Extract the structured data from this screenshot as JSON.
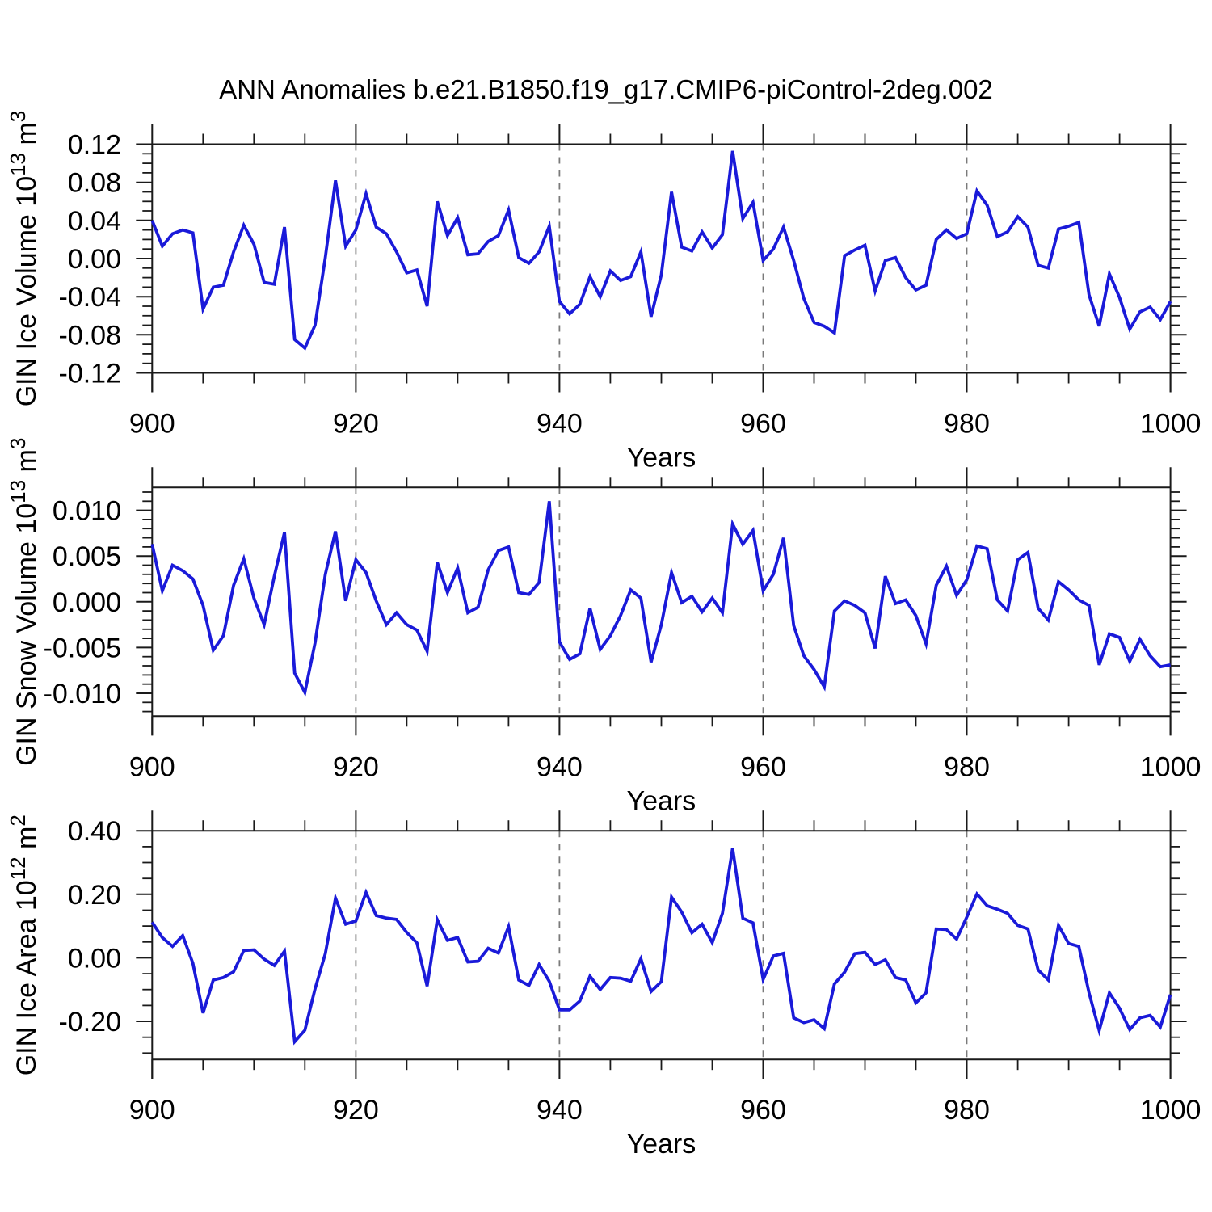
{
  "title": "ANN Anomalies b.e21.B1850.f19_g17.CMIP6-piControl-2deg.002",
  "colors": {
    "line": "#1a1ad9",
    "axis": "#1a1a1a",
    "dashed_gridline": "#7a7a7a",
    "background": "#ffffff",
    "text": "#000000"
  },
  "x_axis": {
    "label": "Years",
    "start": 900,
    "end": 1000,
    "major_ticks": [
      900,
      920,
      940,
      960,
      980,
      1000
    ],
    "major_tick_labels": [
      "900",
      "920",
      "940",
      "960",
      "980",
      "1000"
    ],
    "minor_step": 5,
    "dashed_gridlines": [
      920,
      940,
      960,
      980
    ]
  },
  "chart_data": [
    {
      "type": "line",
      "name": "ice-volume",
      "ylabel": "GIN Ice Volume 10^13 m^3",
      "ylabel_parts": {
        "main": "GIN Ice Volume 10",
        "exp": "13",
        "unit": " m",
        "unit_exp": "3"
      },
      "xlabel": "Years",
      "xlim": [
        900,
        1000
      ],
      "x_start": 900,
      "x_step": 1,
      "ylim_box": [
        -0.12,
        0.12
      ],
      "y_top": 0.12,
      "y_bottom": -0.12,
      "y_tick_values": [
        0.12,
        0.08,
        0.04,
        0.0,
        -0.04,
        -0.08,
        -0.12
      ],
      "y_tick_labels": [
        "0.12",
        "0.08",
        "0.04",
        "0.00",
        "-0.04",
        "-0.08",
        "-0.12"
      ],
      "y_minor_step": 0.01,
      "values": [
        0.04,
        0.013,
        0.026,
        0.03,
        0.027,
        -0.053,
        -0.03,
        -0.028,
        0.007,
        0.035,
        0.015,
        -0.025,
        -0.027,
        0.033,
        -0.085,
        -0.094,
        -0.07,
        0.001,
        0.082,
        0.013,
        0.03,
        0.068,
        0.033,
        0.026,
        0.007,
        -0.015,
        -0.012,
        -0.05,
        0.06,
        0.024,
        0.043,
        0.004,
        0.005,
        0.018,
        0.024,
        0.051,
        0.001,
        -0.005,
        0.007,
        0.034,
        -0.045,
        -0.058,
        -0.048,
        -0.019,
        -0.04,
        -0.013,
        -0.023,
        -0.019,
        0.007,
        -0.061,
        -0.017,
        0.07,
        0.012,
        0.008,
        0.028,
        0.011,
        0.025,
        0.113,
        0.042,
        0.059,
        -0.002,
        0.01,
        0.033,
        -0.002,
        -0.042,
        -0.067,
        -0.071,
        -0.078,
        0.003,
        0.009,
        0.014,
        -0.034,
        -0.002,
        0.001,
        -0.02,
        -0.033,
        -0.028,
        0.02,
        0.03,
        0.021,
        0.026,
        0.071,
        0.056,
        0.023,
        0.028,
        0.044,
        0.033,
        -0.007,
        -0.01,
        0.031,
        0.034,
        0.038,
        -0.038,
        -0.071,
        -0.016,
        -0.041,
        -0.074,
        -0.056,
        -0.051,
        -0.064,
        -0.045
      ]
    },
    {
      "type": "line",
      "name": "snow-volume",
      "ylabel": "GIN Snow Volume 10^13 m^3",
      "ylabel_parts": {
        "main": "GIN Snow Volume 10",
        "exp": "13",
        "unit": " m",
        "unit_exp": "3"
      },
      "xlabel": "Years",
      "xlim": [
        900,
        1000
      ],
      "x_start": 900,
      "x_step": 1,
      "ylim_box": [
        -0.0125,
        0.0125
      ],
      "y_top": 0.0125,
      "y_bottom": -0.0125,
      "y_tick_values": [
        0.01,
        0.005,
        0.0,
        -0.005,
        -0.01
      ],
      "y_tick_labels": [
        "0.010",
        "0.005",
        "0.000",
        "-0.005",
        "-0.010"
      ],
      "y_minor_step": 0.001,
      "values": [
        0.0063,
        0.0012,
        0.004,
        0.0034,
        0.0025,
        -0.0004,
        -0.0053,
        -0.0037,
        0.0018,
        0.0047,
        0.0004,
        -0.0025,
        0.0028,
        0.0076,
        -0.0078,
        -0.0099,
        -0.0045,
        0.003,
        0.0077,
        0.0001,
        0.0046,
        0.0032,
        0.0001,
        -0.0025,
        -0.0012,
        -0.0025,
        -0.0031,
        -0.0054,
        0.0043,
        0.001,
        0.0037,
        -0.0012,
        -0.0006,
        0.0035,
        0.0056,
        0.006,
        0.001,
        0.0008,
        0.0021,
        0.011,
        -0.0044,
        -0.0063,
        -0.0057,
        -0.0007,
        -0.0052,
        -0.0037,
        -0.0015,
        0.0013,
        0.0004,
        -0.0066,
        -0.0025,
        0.0032,
        -0.0001,
        0.0006,
        -0.0011,
        0.0004,
        -0.0012,
        0.0085,
        0.0063,
        0.0078,
        0.0012,
        0.003,
        0.007,
        -0.0026,
        -0.0059,
        -0.0074,
        -0.0093,
        -0.001,
        0.0001,
        -0.0004,
        -0.0012,
        -0.0051,
        0.0028,
        -0.0002,
        0.0002,
        -0.0015,
        -0.0046,
        0.0018,
        0.0039,
        0.0007,
        0.0024,
        0.0061,
        0.0058,
        0.0002,
        -0.001,
        0.0046,
        0.0054,
        -0.0007,
        -0.002,
        0.0022,
        0.0013,
        0.0002,
        -0.0004,
        -0.0069,
        -0.0035,
        -0.0039,
        -0.0065,
        -0.0041,
        -0.0059,
        -0.0071,
        -0.0069
      ]
    },
    {
      "type": "line",
      "name": "ice-area",
      "ylabel": "GIN Ice Area 10^12 m^2",
      "ylabel_parts": {
        "main": "GIN Ice Area 10",
        "exp": "12",
        "unit": " m",
        "unit_exp": "2"
      },
      "xlabel": "Years",
      "xlim": [
        900,
        1000
      ],
      "x_start": 900,
      "x_step": 1,
      "ylim_box": [
        -0.32,
        0.4
      ],
      "y_top": 0.4,
      "y_bottom": -0.32,
      "y_tick_values": [
        0.4,
        0.2,
        0.0,
        -0.2
      ],
      "y_tick_labels": [
        "0.40",
        "0.20",
        "0.00",
        "-0.20"
      ],
      "y_minor_step": 0.05,
      "values": [
        0.112,
        0.064,
        0.036,
        0.07,
        -0.017,
        -0.174,
        -0.07,
        -0.062,
        -0.044,
        0.023,
        0.025,
        -0.004,
        -0.024,
        0.021,
        -0.264,
        -0.228,
        -0.098,
        0.013,
        0.188,
        0.106,
        0.116,
        0.206,
        0.133,
        0.125,
        0.121,
        0.08,
        0.047,
        -0.089,
        0.12,
        0.055,
        0.064,
        -0.013,
        -0.011,
        0.03,
        0.015,
        0.098,
        -0.07,
        -0.087,
        -0.021,
        -0.074,
        -0.164,
        -0.164,
        -0.136,
        -0.058,
        -0.1,
        -0.062,
        -0.064,
        -0.074,
        -0.003,
        -0.106,
        -0.075,
        0.191,
        0.144,
        0.079,
        0.106,
        0.048,
        0.14,
        0.345,
        0.125,
        0.11,
        -0.068,
        0.006,
        0.014,
        -0.189,
        -0.204,
        -0.195,
        -0.223,
        -0.082,
        -0.045,
        0.013,
        0.017,
        -0.021,
        -0.006,
        -0.062,
        -0.07,
        -0.142,
        -0.11,
        0.091,
        0.089,
        0.059,
        0.128,
        0.201,
        0.164,
        0.153,
        0.14,
        0.102,
        0.091,
        -0.038,
        -0.07,
        0.102,
        0.045,
        0.036,
        -0.11,
        -0.229,
        -0.11,
        -0.159,
        -0.226,
        -0.189,
        -0.181,
        -0.218,
        -0.116
      ]
    }
  ]
}
